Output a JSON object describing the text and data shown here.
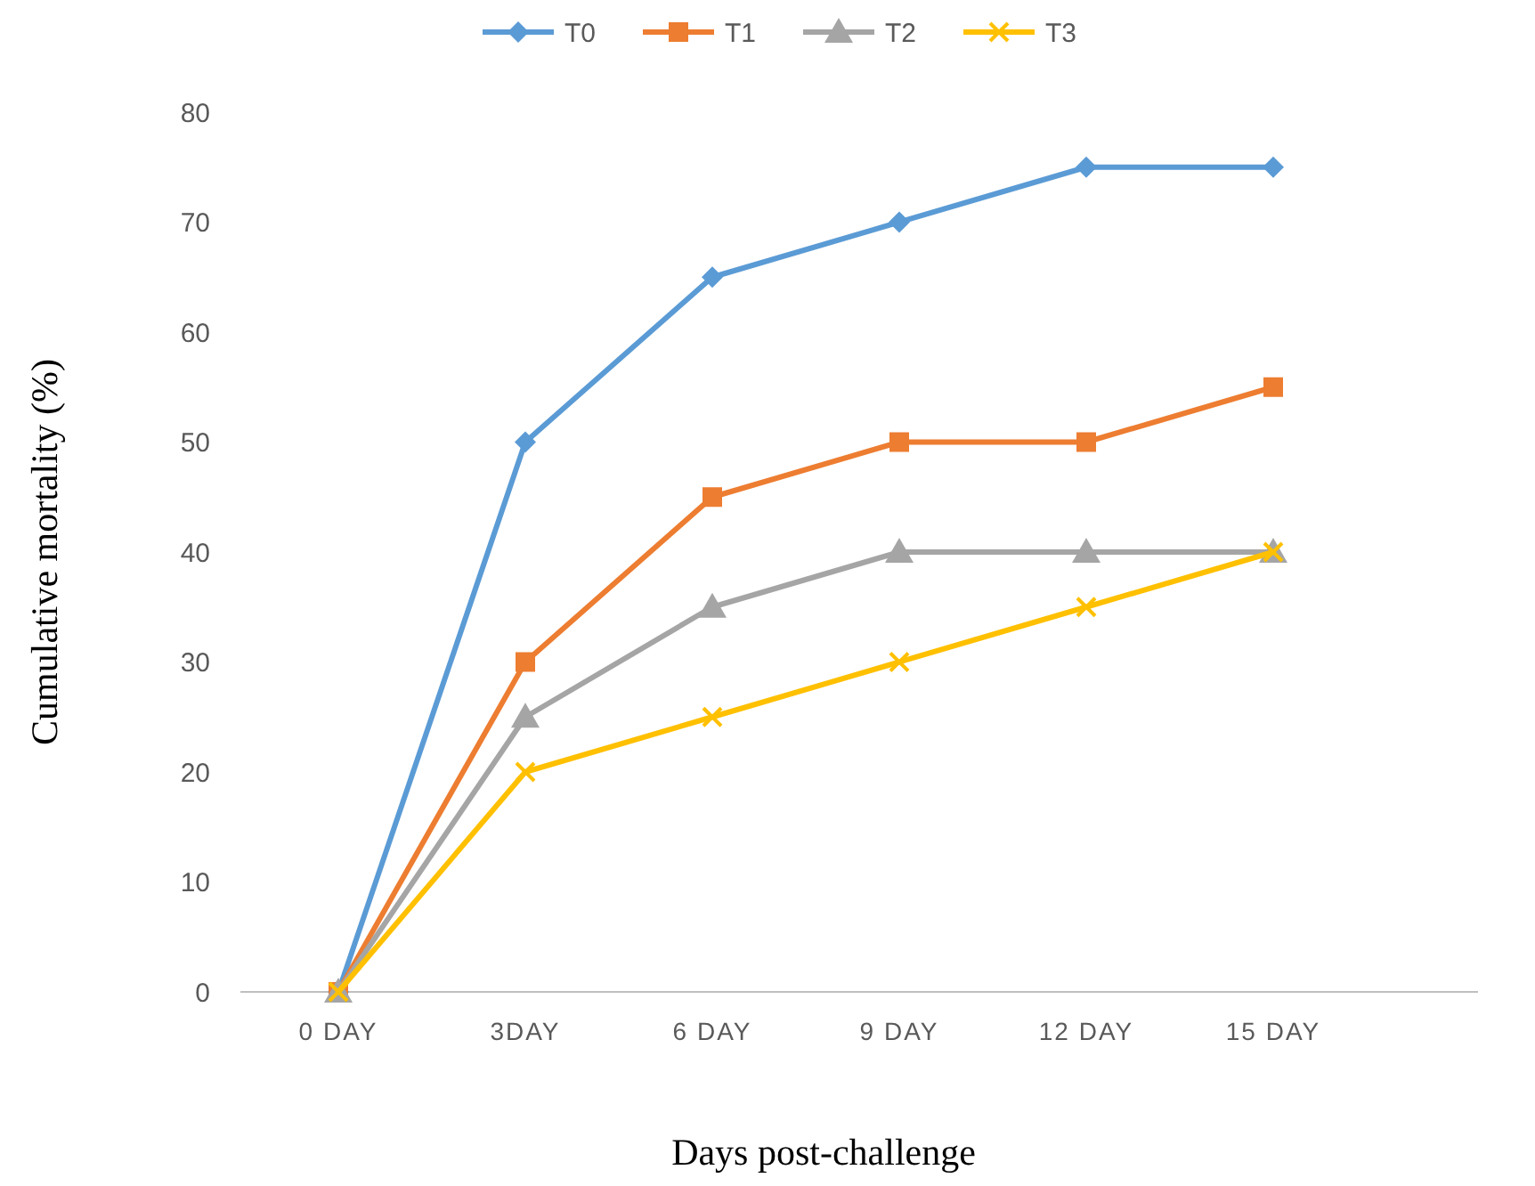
{
  "chart_data": {
    "type": "line",
    "xlabel": "Days post-challenge",
    "ylabel": "Cumulative mortality (%)",
    "categories": [
      "0 DAY",
      "3DAY",
      "6 DAY",
      "9 DAY",
      "12 DAY",
      "15 DAY"
    ],
    "ylim": [
      0,
      80
    ],
    "yticks": [
      0,
      10,
      20,
      30,
      40,
      50,
      60,
      70,
      80
    ],
    "grid": false,
    "legend": "top",
    "series": [
      {
        "name": "T0",
        "color": "#5b9bd5",
        "marker": "diamond",
        "values": [
          0,
          50,
          65,
          70,
          75,
          75
        ]
      },
      {
        "name": "T1",
        "color": "#ed7d31",
        "marker": "square",
        "values": [
          0,
          30,
          45,
          50,
          50,
          55
        ]
      },
      {
        "name": "T2",
        "color": "#a5a5a5",
        "marker": "triangle",
        "values": [
          0,
          25,
          35,
          40,
          40,
          40
        ]
      },
      {
        "name": "T3",
        "color": "#ffc000",
        "marker": "cross",
        "values": [
          0,
          20,
          25,
          30,
          35,
          40
        ]
      }
    ]
  }
}
